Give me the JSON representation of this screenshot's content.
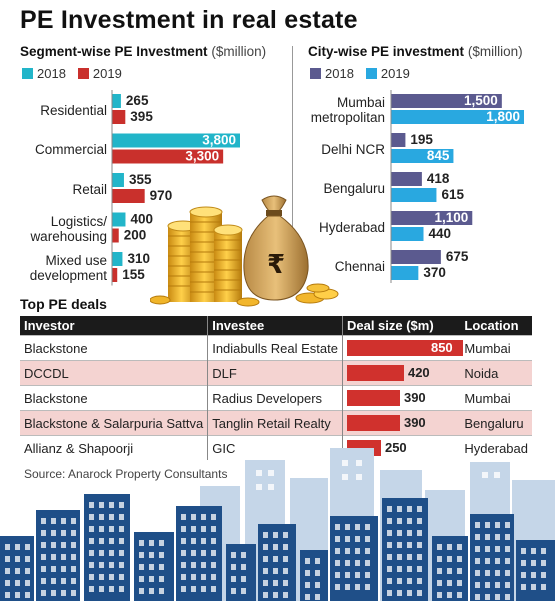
{
  "title": "PE Investment in real estate",
  "segment": {
    "heading": "Segment-wise PE Investment",
    "unit": "($million)",
    "legend": [
      {
        "label": "2018",
        "color": "#22b5c9"
      },
      {
        "label": "2019",
        "color": "#c9302c"
      }
    ]
  },
  "city": {
    "heading": "City-wise PE investment",
    "unit": "($million)",
    "legend": [
      {
        "label": "2018",
        "color": "#5b5a8f"
      },
      {
        "label": "2019",
        "color": "#29a8e0"
      }
    ]
  },
  "deals": {
    "heading": "Top PE deals",
    "columns": [
      "Investor",
      "Investee",
      "Deal size ($m)",
      "Location"
    ],
    "rows": [
      {
        "investor": "Blackstone",
        "investee": "Indiabulls Real Estate",
        "size": 850,
        "location": "Mumbai"
      },
      {
        "investor": "DCCDL",
        "investee": "DLF",
        "size": 420,
        "location": "Noida"
      },
      {
        "investor": "Blackstone",
        "investee": "Radius Developers",
        "size": 390,
        "location": "Mumbai"
      },
      {
        "investor": "Blackstone & Salarpuria Sattva",
        "investee": "Tanglin Retail Realty",
        "size": 390,
        "location": "Bengaluru"
      },
      {
        "investor": "Allianz & Shapoorji",
        "investee": "GIC",
        "size": 250,
        "location": "Hyderabad"
      }
    ]
  },
  "source": "Source: Anarock Property Consultants",
  "chart_data": [
    {
      "type": "bar",
      "orientation": "horizontal",
      "title": "Segment-wise PE Investment",
      "unit": "($million)",
      "categories": [
        "Residential",
        "Commercial",
        "Retail",
        "Logistics/ warehousing",
        "Mixed use development"
      ],
      "series": [
        {
          "name": "2018",
          "values": [
            265,
            3800,
            355,
            400,
            310
          ],
          "color": "#22b5c9"
        },
        {
          "name": "2019",
          "values": [
            395,
            3300,
            970,
            200,
            155
          ],
          "color": "#c9302c"
        }
      ],
      "legend": "top-left",
      "grid": false
    },
    {
      "type": "bar",
      "orientation": "horizontal",
      "title": "City-wise PE investment",
      "unit": "($million)",
      "categories": [
        "Mumbai metropolitan",
        "Delhi NCR",
        "Bengaluru",
        "Hyderabad",
        "Chennai"
      ],
      "series": [
        {
          "name": "2018",
          "values": [
            1500,
            195,
            418,
            1100,
            675
          ],
          "color": "#5b5a8f"
        },
        {
          "name": "2019",
          "values": [
            1800,
            845,
            615,
            440,
            370
          ],
          "color": "#29a8e0"
        }
      ],
      "legend": "top-left",
      "grid": false
    },
    {
      "type": "bar",
      "orientation": "horizontal",
      "title": "Top PE deals",
      "categories": [
        "Indiabulls Real Estate",
        "DLF",
        "Radius Developers",
        "Tanglin Retail Realty",
        "GIC"
      ],
      "series": [
        {
          "name": "Deal size ($m)",
          "values": [
            850,
            420,
            390,
            390,
            250
          ],
          "color": "#d0312d"
        }
      ]
    }
  ]
}
